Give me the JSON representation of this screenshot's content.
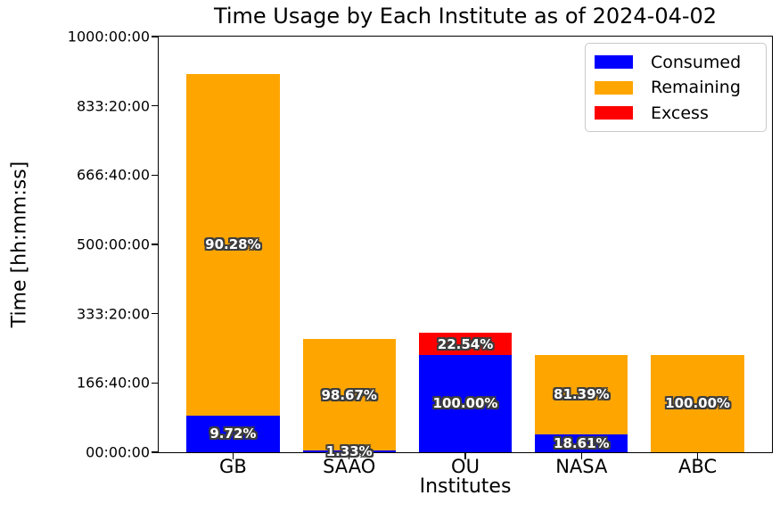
{
  "chart_data": {
    "type": "bar",
    "stacked": true,
    "title": "Time Usage by Each Institute as of 2024-04-02",
    "xlabel": "Institutes",
    "ylabel": "Time [hh:mm:ss]",
    "categories": [
      "GB",
      "SAAO",
      "OU",
      "NASA",
      "ABC"
    ],
    "series": [
      {
        "name": "Consumed",
        "color": "#0000ff",
        "values_hours": [
          88.5,
          3.62,
          234.0,
          43.55,
          0
        ],
        "percent_labels": [
          "9.72%",
          "1.33%",
          "100.00%",
          "18.61%",
          ""
        ]
      },
      {
        "name": "Remaining",
        "color": "#ffa500",
        "values_hours": [
          822.0,
          268.4,
          0,
          190.45,
          234.0
        ],
        "percent_labels": [
          "90.28%",
          "98.67%",
          "",
          "81.39%",
          "100.00%"
        ]
      },
      {
        "name": "Excess",
        "color": "#ff0000",
        "values_hours": [
          0,
          0,
          52.74,
          0,
          0
        ],
        "percent_labels": [
          "",
          "",
          "22.54%",
          "",
          ""
        ]
      }
    ],
    "ylim": [
      0,
      1000
    ],
    "yticks": [
      {
        "label": "00:00:00",
        "hours": 0
      },
      {
        "label": "166:40:00",
        "hours": 166.6667
      },
      {
        "label": "333:20:00",
        "hours": 333.3333
      },
      {
        "label": "500:00:00",
        "hours": 500
      },
      {
        "label": "666:40:00",
        "hours": 666.6667
      },
      {
        "label": "833:20:00",
        "hours": 833.3333
      },
      {
        "label": "1000:00:00",
        "hours": 1000
      }
    ],
    "legend": {
      "position": "upper right",
      "entries": [
        "Consumed",
        "Remaining",
        "Excess"
      ]
    },
    "grid": false,
    "background_color": "#ffffff",
    "bar_label_text_color": "#ffffff",
    "bar_label_outline_color": "#3d3d3d",
    "spine_color": "#000000"
  }
}
